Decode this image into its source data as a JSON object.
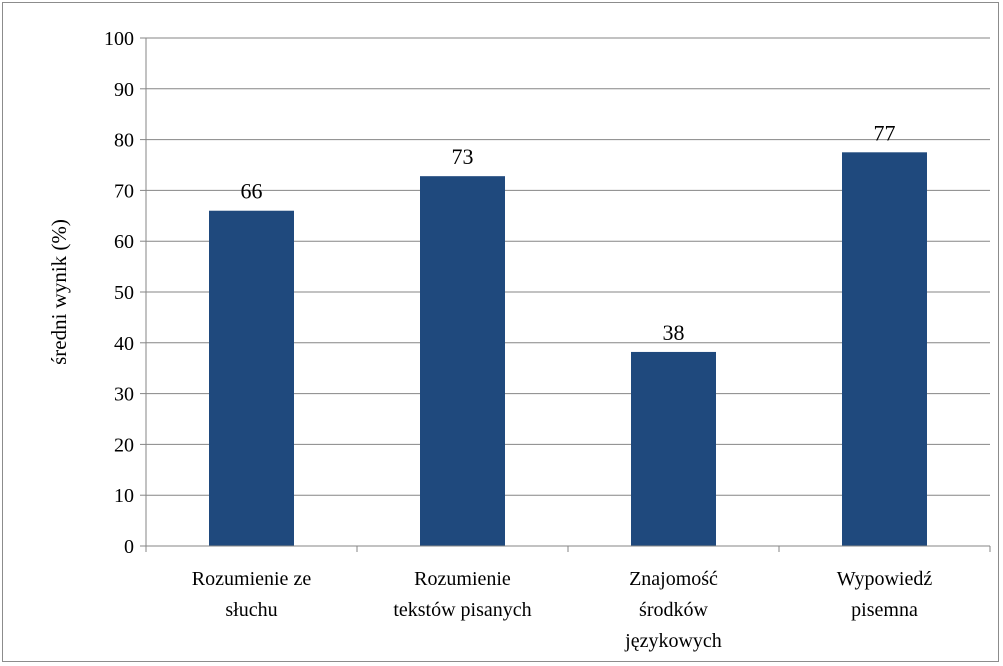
{
  "chart_data": {
    "type": "bar",
    "categories": [
      [
        "Rozumienie ze",
        "słuchu"
      ],
      [
        "Rozumienie",
        "tekstów pisanych"
      ],
      [
        "Znajomość",
        "środków",
        "językowych"
      ],
      [
        "Wypowiedź",
        "pisemna"
      ]
    ],
    "values": [
      66,
      73,
      38,
      77
    ],
    "value_labels": [
      "66",
      "73",
      "38",
      "77"
    ],
    "bar_heights": [
      66,
      72.8,
      38.2,
      77.5
    ],
    "title": "",
    "xlabel": "",
    "ylabel": "średni wynik  (%)",
    "ylim": [
      0,
      100
    ],
    "yticks": [
      "0",
      "10",
      "20",
      "30",
      "40",
      "50",
      "60",
      "70",
      "80",
      "90",
      "100"
    ],
    "grid": true,
    "legend": "none",
    "bar_color": "#1f497d",
    "grid_color": "#868686"
  }
}
